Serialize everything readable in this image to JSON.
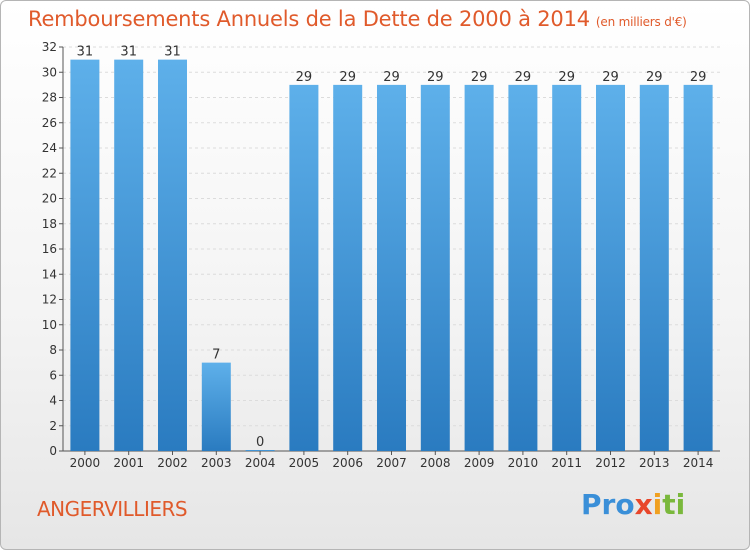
{
  "header": {
    "title": "Remboursements Annuels de la Dette de 2000 à 2014",
    "subtitle": "(en milliers d'€)"
  },
  "commune": "ANGERVILLIERS",
  "logo": {
    "parts": [
      "Pro",
      "x",
      "i",
      "ti"
    ]
  },
  "colors": {
    "bar_top": "#5eb0ea",
    "bar_bottom": "#2a7bc0",
    "title": "#e05a2b",
    "grid": "#dcdcdc"
  },
  "chart_data": {
    "type": "bar",
    "categories": [
      "2000",
      "2001",
      "2002",
      "2003",
      "2004",
      "2005",
      "2006",
      "2007",
      "2008",
      "2009",
      "2010",
      "2011",
      "2012",
      "2013",
      "2014"
    ],
    "values": [
      31,
      31,
      31,
      7,
      0,
      29,
      29,
      29,
      29,
      29,
      29,
      29,
      29,
      29,
      29
    ],
    "title": "Remboursements Annuels de la Dette de 2000 à 2014",
    "subtitle": "(en milliers d'€)",
    "xlabel": "",
    "ylabel": "",
    "ylim": [
      0,
      32
    ],
    "yticks": [
      0,
      2,
      4,
      6,
      8,
      10,
      12,
      14,
      16,
      18,
      20,
      22,
      24,
      26,
      28,
      30,
      32
    ],
    "grid": true,
    "data_labels": true
  }
}
